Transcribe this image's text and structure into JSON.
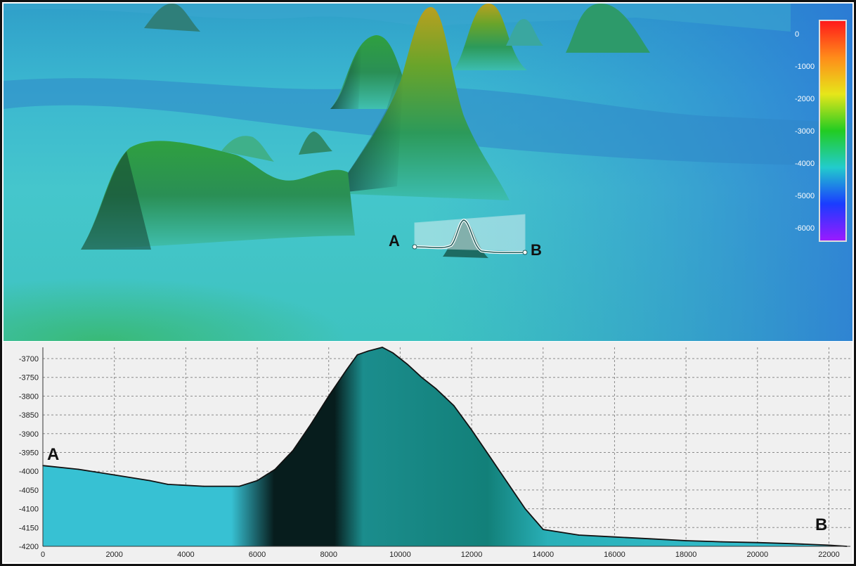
{
  "terrain": {
    "marker_a": "A",
    "marker_b": "B",
    "colorbar": {
      "ticks": [
        "0",
        "-1000",
        "-2000",
        "-3000",
        "-4000",
        "-5000",
        "-6000"
      ],
      "colors": [
        "#ff1a1a",
        "#ff8c1a",
        "#e6e61a",
        "#22cc22",
        "#22cccc",
        "#1a3cff",
        "#9a1aff"
      ]
    }
  },
  "chart_data": {
    "type": "area",
    "x": [
      0,
      1000,
      2000,
      3000,
      3500,
      4500,
      5500,
      6000,
      6500,
      7000,
      7500,
      8000,
      8500,
      8800,
      9100,
      9500,
      9800,
      10200,
      10600,
      11000,
      11500,
      12000,
      12500,
      13000,
      13500,
      14000,
      15000,
      16000,
      17000,
      18000,
      19000,
      20000,
      21000,
      22000,
      22500
    ],
    "y": [
      -3985,
      -3995,
      -4010,
      -4025,
      -4035,
      -4040,
      -4040,
      -4025,
      -3995,
      -3945,
      -3875,
      -3800,
      -3730,
      -3690,
      -3680,
      -3670,
      -3685,
      -3715,
      -3750,
      -3780,
      -3825,
      -3890,
      -3960,
      -4030,
      -4100,
      -4155,
      -4170,
      -4175,
      -4180,
      -4185,
      -4188,
      -4190,
      -4193,
      -4197,
      -4200
    ],
    "xlim": [
      0,
      22600
    ],
    "ylim": [
      -4200,
      -3670
    ],
    "xticks": [
      "0",
      "2000",
      "4000",
      "6000",
      "8000",
      "10000",
      "12000",
      "14000",
      "16000",
      "18000",
      "20000",
      "22000"
    ],
    "yticks": [
      "-3700",
      "-3750",
      "-3800",
      "-3850",
      "-3900",
      "-3950",
      "-4000",
      "-4050",
      "-4100",
      "-4150",
      "-4200"
    ],
    "grid": true,
    "annotations": [
      "A",
      "B"
    ],
    "line_color": "#111111",
    "fill_colors": [
      "#37c1d3",
      "#1b8d8d",
      "#071d1d",
      "#128079",
      "#29b0b8"
    ]
  }
}
